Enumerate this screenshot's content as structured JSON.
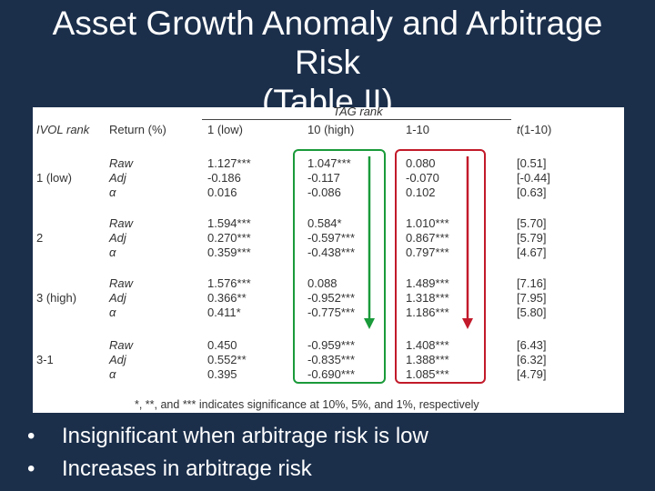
{
  "title": {
    "line1": "Asset Growth Anomaly and Arbitrage",
    "line2": "Risk",
    "line3": "(Table II)"
  },
  "table": {
    "spanner": "TAG rank",
    "headers": {
      "ivol": "IVOL rank",
      "ret": "Return (%)",
      "c1": "1 (low)",
      "c2": "10 (high)",
      "c3": "1-10",
      "c4": "t(1-10)"
    },
    "rows": [
      {
        "rank": "1 (low)",
        "labels": [
          "Raw",
          "Adj",
          "α"
        ],
        "c1": [
          "1.127***",
          "-0.186",
          "0.016"
        ],
        "c2": [
          "1.047***",
          "-0.117",
          "-0.086"
        ],
        "c3": [
          "0.080",
          "-0.070",
          "0.102"
        ],
        "c4": [
          "[0.51]",
          "[-0.44]",
          "[0.63]"
        ]
      },
      {
        "rank": "2",
        "labels": [
          "Raw",
          "Adj",
          "α"
        ],
        "c1": [
          "1.594***",
          "0.270***",
          "0.359***"
        ],
        "c2": [
          "0.584*",
          "-0.597***",
          "-0.438***"
        ],
        "c3": [
          "1.010***",
          "0.867***",
          "0.797***"
        ],
        "c4": [
          "[5.70]",
          "[5.79]",
          "[4.67]"
        ]
      },
      {
        "rank": "3 (high)",
        "labels": [
          "Raw",
          "Adj",
          "α"
        ],
        "c1": [
          "1.576***",
          "0.366**",
          "0.411*"
        ],
        "c2": [
          "0.088",
          "-0.952***",
          "-0.775***"
        ],
        "c3": [
          "1.489***",
          "1.318***",
          "1.186***"
        ],
        "c4": [
          "[7.16]",
          "[7.95]",
          "[5.80]"
        ]
      },
      {
        "rank": "3-1",
        "labels": [
          "Raw",
          "Adj",
          "α"
        ],
        "c1": [
          "0.450",
          "0.552**",
          "0.395"
        ],
        "c2": [
          "-0.959***",
          "-0.835***",
          "-0.690***"
        ],
        "c3": [
          "1.408***",
          "1.388***",
          "1.085***"
        ],
        "c4": [
          "[6.43]",
          "[6.32]",
          "[4.79]"
        ]
      }
    ],
    "footnote": "*, **, and *** indicates significance at 10%, 5%, and 1%, respectively"
  },
  "bullets": [
    "Insignificant when arbitrage risk is low",
    "Increases in arbitrage risk"
  ],
  "colors": {
    "background": "#1b2f4b",
    "green_arrow": "#1a9a3a",
    "red_arrow": "#c21a2a"
  }
}
